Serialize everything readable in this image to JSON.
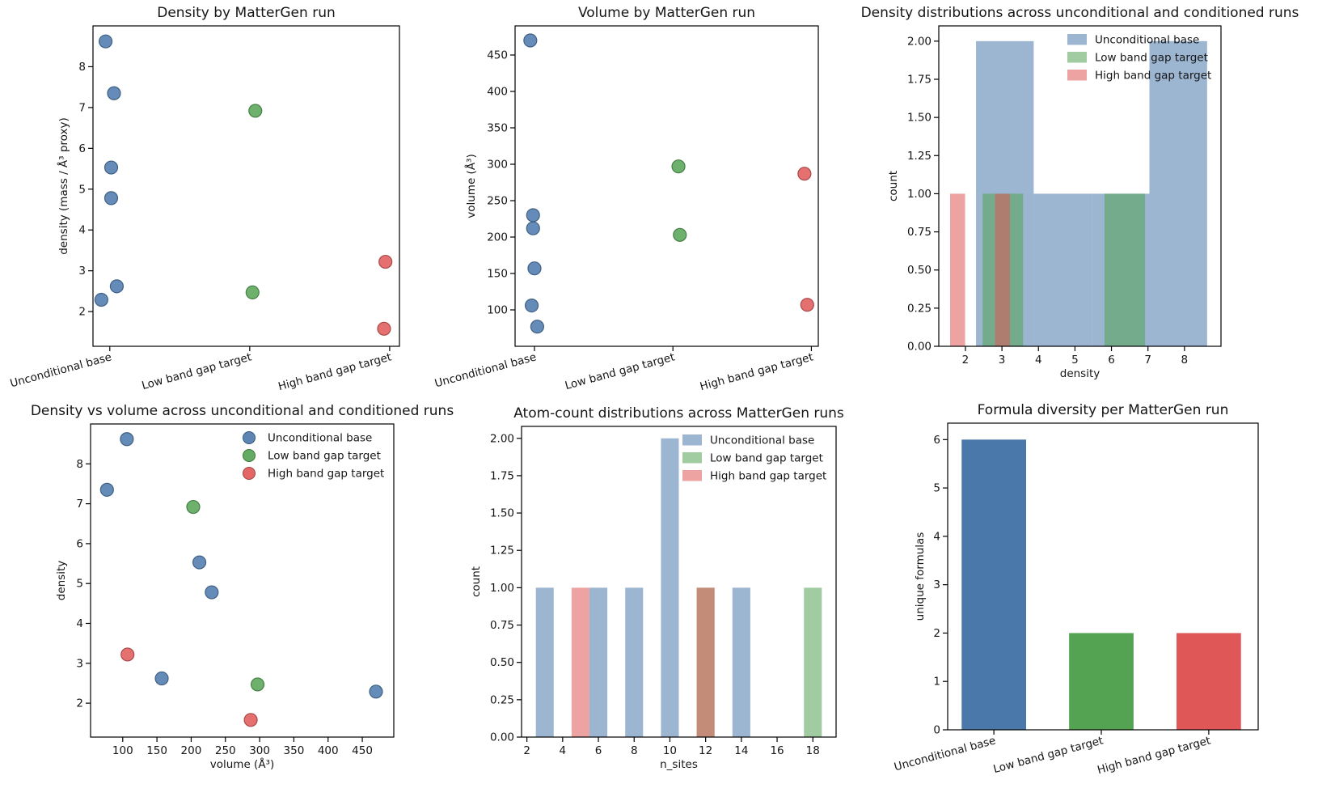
{
  "figure": {
    "background": "#ffffff"
  },
  "palette": {
    "Unconditional base": "#4a78ab",
    "Low band gap target": "#53a353",
    "High band gap target": "#e05757"
  },
  "legend_labels": [
    "Unconditional base",
    "Low band gap target",
    "High band gap target"
  ],
  "chart_data": [
    {
      "id": "density-by-run",
      "type": "strip",
      "title": "Density by MatterGen run",
      "xlabel": "",
      "ylabel": "density (mass / Å³ proxy)",
      "categories": [
        "Unconditional base",
        "Low band gap target",
        "High band gap target"
      ],
      "xlim": [
        -0.12,
        2.07
      ],
      "ylim": [
        1.15,
        9.0
      ],
      "yticks": [
        2,
        3,
        4,
        5,
        6,
        7,
        8
      ],
      "legend": null,
      "series": [
        {
          "name": "Unconditional base",
          "points": [
            [
              -0.03,
              8.62
            ],
            [
              0.03,
              7.35
            ],
            [
              0.01,
              5.53
            ],
            [
              0.01,
              4.78
            ],
            [
              0.05,
              2.62
            ],
            [
              -0.06,
              2.29
            ]
          ]
        },
        {
          "name": "Low band gap target",
          "points": [
            [
              1.04,
              6.92
            ],
            [
              1.02,
              2.47
            ]
          ]
        },
        {
          "name": "High band gap target",
          "points": [
            [
              1.97,
              3.22
            ],
            [
              1.96,
              1.58
            ]
          ]
        }
      ]
    },
    {
      "id": "volume-by-run",
      "type": "strip",
      "title": "Volume by MatterGen run",
      "xlabel": "",
      "ylabel": "volume (Å³)",
      "categories": [
        "Unconditional base",
        "Low band gap target",
        "High band gap target"
      ],
      "xlim": [
        -0.14,
        2.05
      ],
      "ylim": [
        50,
        490
      ],
      "yticks": [
        100,
        150,
        200,
        250,
        300,
        350,
        400,
        450
      ],
      "legend": null,
      "series": [
        {
          "name": "Unconditional base",
          "points": [
            [
              -0.03,
              470
            ],
            [
              -0.01,
              230
            ],
            [
              -0.01,
              212
            ],
            [
              0.0,
              157
            ],
            [
              -0.02,
              106
            ],
            [
              0.02,
              77
            ]
          ]
        },
        {
          "name": "Low band gap target",
          "points": [
            [
              1.04,
              297
            ],
            [
              1.05,
              203
            ]
          ]
        },
        {
          "name": "High band gap target",
          "points": [
            [
              1.95,
              287
            ],
            [
              1.97,
              107
            ]
          ]
        }
      ]
    },
    {
      "id": "density-distributions",
      "type": "hist",
      "title": "Density distributions across unconditional and conditioned runs",
      "xlabel": "density",
      "ylabel": "count",
      "xlim": [
        1.27,
        9.0
      ],
      "ylim": [
        0,
        2.1
      ],
      "xticks": [
        2,
        3,
        4,
        5,
        6,
        7,
        8
      ],
      "yticks": [
        0,
        0.25,
        0.5,
        0.75,
        1.0,
        1.25,
        1.5,
        1.75,
        2.0
      ],
      "legend": {
        "swatch": "rect"
      },
      "series": [
        {
          "name": "Unconditional base",
          "bars": [
            [
              2.29,
              3.87,
              2
            ],
            [
              3.87,
              5.46,
              1
            ],
            [
              5.46,
              7.04,
              1
            ],
            [
              7.04,
              8.62,
              2
            ]
          ]
        },
        {
          "name": "Low band gap target",
          "bars": [
            [
              2.47,
              3.58,
              1
            ],
            [
              5.81,
              6.92,
              1
            ]
          ]
        },
        {
          "name": "High band gap target",
          "bars": [
            [
              1.58,
              1.99,
              1
            ],
            [
              2.81,
              3.22,
              1
            ]
          ]
        }
      ]
    },
    {
      "id": "density-vs-volume",
      "type": "scatter",
      "title": "Density vs volume across unconditional and conditioned runs",
      "xlabel": "volume (Å³)",
      "ylabel": "density",
      "xlim": [
        53,
        496
      ],
      "ylim": [
        1.15,
        9.0
      ],
      "xticks": [
        100,
        150,
        200,
        250,
        300,
        350,
        400,
        450
      ],
      "yticks": [
        2,
        3,
        4,
        5,
        6,
        7,
        8
      ],
      "legend": {
        "swatch": "circle"
      },
      "series": [
        {
          "name": "Unconditional base",
          "points": [
            [
              106,
              8.62
            ],
            [
              77,
              7.35
            ],
            [
              212,
              5.53
            ],
            [
              230,
              4.78
            ],
            [
              157,
              2.62
            ],
            [
              470,
              2.29
            ]
          ]
        },
        {
          "name": "Low band gap target",
          "points": [
            [
              203,
              6.92
            ],
            [
              297,
              2.47
            ]
          ]
        },
        {
          "name": "High band gap target",
          "points": [
            [
              107,
              3.22
            ],
            [
              287,
              1.58
            ]
          ]
        }
      ]
    },
    {
      "id": "atom-count-distributions",
      "type": "hist",
      "title": "Atom-count distributions across MatterGen runs",
      "xlabel": "n_sites",
      "ylabel": "count",
      "xlim": [
        1.7,
        19.3
      ],
      "ylim": [
        0,
        2.08
      ],
      "xticks": [
        2,
        4,
        6,
        8,
        10,
        12,
        14,
        16,
        18
      ],
      "yticks": [
        0,
        0.25,
        0.5,
        0.75,
        1.0,
        1.25,
        1.5,
        1.75,
        2.0
      ],
      "legend": {
        "swatch": "rect"
      },
      "series": [
        {
          "name": "Unconditional base",
          "bars": [
            [
              2.5,
              3.5,
              1
            ],
            [
              5.5,
              6.5,
              1
            ],
            [
              7.5,
              8.5,
              1
            ],
            [
              9.5,
              10.5,
              2
            ],
            [
              13.5,
              14.5,
              1
            ]
          ]
        },
        {
          "name": "Low band gap target",
          "bars": [
            [
              11.5,
              12.5,
              1
            ],
            [
              17.5,
              18.5,
              1
            ]
          ]
        },
        {
          "name": "High band gap target",
          "bars": [
            [
              4.5,
              5.5,
              1
            ],
            [
              11.5,
              12.5,
              1
            ]
          ]
        }
      ]
    },
    {
      "id": "formula-diversity",
      "type": "bar",
      "title": "Formula diversity per MatterGen run",
      "xlabel": "",
      "ylabel": "unique formulas",
      "categories": [
        "Unconditional base",
        "Low band gap target",
        "High band gap target"
      ],
      "values": [
        6,
        2,
        2
      ],
      "bar_width": 0.6,
      "xlim": [
        -0.43,
        2.46
      ],
      "ylim": [
        0,
        6.34
      ],
      "yticks": [
        0,
        1,
        2,
        3,
        4,
        5,
        6
      ],
      "legend": null
    }
  ]
}
